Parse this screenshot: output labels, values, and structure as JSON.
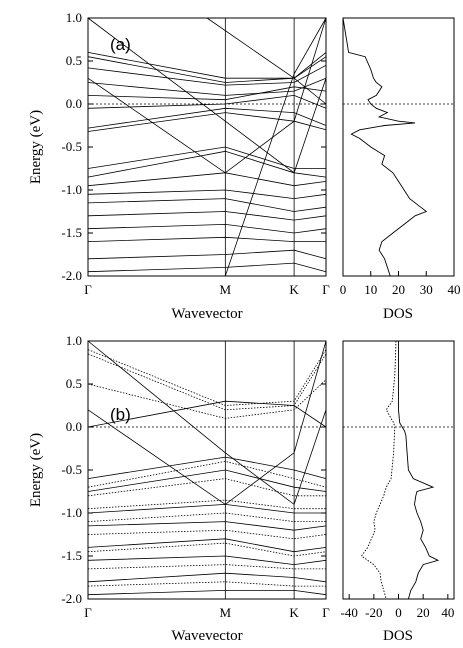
{
  "figure": {
    "panel_a_label": "(a)",
    "panel_b_label": "(b)",
    "ylabel": "Energy (eV)",
    "band_xlabel": "Wavevector",
    "dos_xlabel": "DOS",
    "kpoint_labels": [
      "Γ",
      "M",
      "K",
      "Γ"
    ]
  },
  "chart_data": [
    {
      "type": "line",
      "panel": "(a)",
      "plot": "band structure",
      "xlabel": "Wavevector",
      "ylabel": "Energy (eV)",
      "ylim": [
        -2.0,
        1.0
      ],
      "yticks": [
        1.0,
        0.5,
        0.0,
        -0.5,
        -1.0,
        -1.5,
        -2.0
      ],
      "ytick_labels": [
        "1.0",
        "0.5",
        "0.0",
        "-0.5",
        "-1.0",
        "-1.5",
        "-2.0"
      ],
      "kpath": [
        "Γ",
        "M",
        "K",
        "Γ"
      ],
      "kpath_positions": [
        0,
        0.577,
        0.866,
        1.0
      ],
      "fermi_level": 0.0,
      "bands": [
        {
          "x": [
            0,
            0.577,
            0.866,
            1.0
          ],
          "y": [
            0.6,
            0.3,
            0.3,
            0.6
          ]
        },
        {
          "x": [
            0,
            0.577,
            0.866,
            1.0
          ],
          "y": [
            0.55,
            0.25,
            0.3,
            0.55
          ]
        },
        {
          "x": [
            0,
            0.577,
            0.866,
            1.0
          ],
          "y": [
            0.42,
            0.22,
            0.25,
            0.45
          ]
        },
        {
          "x": [
            0,
            0.577,
            0.866,
            1.0
          ],
          "y": [
            0.25,
            0.1,
            0.15,
            0.3
          ]
        },
        {
          "x": [
            0,
            0.577,
            0.866,
            1.0
          ],
          "y": [
            0.1,
            0.05,
            0.2,
            0.15
          ]
        },
        {
          "x": [
            0,
            0.577,
            0.866,
            1.0
          ],
          "y": [
            -0.05,
            0.0,
            0.1,
            -0.05
          ]
        },
        {
          "x": [
            0,
            0.577,
            0.866,
            1.0
          ],
          "y": [
            -0.28,
            -0.05,
            -0.1,
            -0.25
          ]
        },
        {
          "x": [
            0,
            0.577,
            0.866,
            1.0
          ],
          "y": [
            -0.32,
            -0.1,
            -0.2,
            -0.3
          ]
        },
        {
          "x": [
            0,
            0.577,
            0.866,
            1.0
          ],
          "y": [
            -0.75,
            -0.5,
            -0.75,
            -0.75
          ]
        },
        {
          "x": [
            0,
            0.577,
            0.866,
            1.0
          ],
          "y": [
            -0.85,
            -0.55,
            -0.8,
            -0.85
          ]
        },
        {
          "x": [
            0,
            0.577,
            0.866,
            1.0
          ],
          "y": [
            -0.95,
            -0.8,
            -0.95,
            -0.9
          ]
        },
        {
          "x": [
            0,
            0.577,
            0.866,
            1.0
          ],
          "y": [
            -1.05,
            -1.0,
            -1.1,
            -1.05
          ]
        },
        {
          "x": [
            0,
            0.577,
            0.866,
            1.0
          ],
          "y": [
            -1.15,
            -1.1,
            -1.25,
            -1.2
          ]
        },
        {
          "x": [
            0,
            0.577,
            0.866,
            1.0
          ],
          "y": [
            -1.3,
            -1.25,
            -1.35,
            -1.3
          ]
        },
        {
          "x": [
            0,
            0.577,
            0.866,
            1.0
          ],
          "y": [
            -1.45,
            -1.4,
            -1.5,
            -1.45
          ]
        },
        {
          "x": [
            0,
            0.577,
            0.866,
            1.0
          ],
          "y": [
            -1.6,
            -1.55,
            -1.6,
            -1.6
          ]
        },
        {
          "x": [
            0,
            0.577,
            0.866,
            1.0
          ],
          "y": [
            -1.8,
            -1.75,
            -1.7,
            -1.8
          ]
        },
        {
          "x": [
            0,
            0.577,
            0.866,
            1.0
          ],
          "y": [
            -1.95,
            -1.9,
            -1.85,
            -1.95
          ]
        },
        {
          "x": [
            0,
            0.577,
            0.866,
            1.0
          ],
          "y": [
            1.0,
            -0.2,
            -0.8,
            0.3
          ]
        },
        {
          "x": [
            0,
            0.577,
            0.866,
            1.0
          ],
          "y": [
            0.3,
            -0.8,
            -0.2,
            1.0
          ]
        },
        {
          "x": [
            0.5,
            0.866,
            1.0
          ],
          "y": [
            1.0,
            0.3,
            0.0
          ]
        },
        {
          "x": [
            0.577,
            0.866,
            1.0
          ],
          "y": [
            -2.0,
            0.35,
            1.0
          ]
        }
      ]
    },
    {
      "type": "line",
      "panel": "(a)",
      "plot": "density of states",
      "xlabel": "DOS",
      "ylabel": "",
      "xlim": [
        0,
        40
      ],
      "xticks": [
        0,
        10,
        20,
        30,
        40
      ],
      "ylim": [
        -2.0,
        1.0
      ],
      "series": [
        {
          "energy": [
            1.0,
            0.8,
            0.6,
            0.55,
            0.4,
            0.3,
            0.25,
            0.2,
            0.15,
            0.1,
            0.05,
            0.0,
            -0.05,
            -0.1,
            -0.15,
            -0.2,
            -0.22,
            -0.25,
            -0.3,
            -0.35,
            -0.4,
            -0.5,
            -0.6,
            -0.7,
            -0.8,
            -0.9,
            -1.0,
            -1.1,
            -1.2,
            -1.25,
            -1.3,
            -1.4,
            -1.5,
            -1.6,
            -1.7,
            -1.8,
            -1.9,
            -2.0
          ],
          "dos": [
            0,
            1,
            2,
            8,
            10,
            11,
            12,
            14,
            13,
            12,
            9,
            10,
            12,
            16,
            13,
            20,
            26,
            15,
            6,
            3,
            6,
            10,
            15,
            14,
            18,
            20,
            22,
            24,
            28,
            30,
            26,
            22,
            18,
            14,
            13,
            15,
            16,
            17
          ]
        }
      ]
    },
    {
      "type": "line",
      "panel": "(b)",
      "plot": "band structure",
      "xlabel": "Wavevector",
      "ylabel": "Energy (eV)",
      "ylim": [
        -2.0,
        1.0
      ],
      "yticks": [
        1.0,
        0.5,
        0.0,
        -0.5,
        -1.0,
        -1.5,
        -2.0
      ],
      "ytick_labels": [
        "1.0",
        "0.5",
        "0.0",
        "-0.5",
        "-1.0",
        "-1.5",
        "-2.0"
      ],
      "kpath": [
        "Γ",
        "M",
        "K",
        "Γ"
      ],
      "kpath_positions": [
        0,
        0.577,
        0.866,
        1.0
      ],
      "fermi_level": 0.0,
      "series_styles": [
        "solid",
        "dotted"
      ],
      "bands": [
        {
          "style": "solid",
          "x": [
            0,
            0.577,
            0.866,
            1.0
          ],
          "y": [
            0.0,
            0.3,
            0.25,
            0.0
          ]
        },
        {
          "style": "solid",
          "x": [
            0,
            0.577,
            0.866,
            1.0
          ],
          "y": [
            -0.6,
            -0.35,
            -0.5,
            -0.6
          ]
        },
        {
          "style": "solid",
          "x": [
            0,
            0.577,
            0.866,
            1.0
          ],
          "y": [
            -0.75,
            -0.5,
            -0.7,
            -0.75
          ]
        },
        {
          "style": "solid",
          "x": [
            0,
            0.577,
            0.866,
            1.0
          ],
          "y": [
            -1.0,
            -0.9,
            -1.0,
            -1.0
          ]
        },
        {
          "style": "solid",
          "x": [
            0,
            0.577,
            0.866,
            1.0
          ],
          "y": [
            -1.15,
            -1.1,
            -1.2,
            -1.15
          ]
        },
        {
          "style": "solid",
          "x": [
            0,
            0.577,
            0.866,
            1.0
          ],
          "y": [
            -1.4,
            -1.3,
            -1.45,
            -1.4
          ]
        },
        {
          "style": "solid",
          "x": [
            0,
            0.577,
            0.866,
            1.0
          ],
          "y": [
            -1.55,
            -1.5,
            -1.6,
            -1.55
          ]
        },
        {
          "style": "solid",
          "x": [
            0,
            0.577,
            0.866,
            1.0
          ],
          "y": [
            -1.8,
            -1.7,
            -1.75,
            -1.8
          ]
        },
        {
          "style": "solid",
          "x": [
            0,
            0.577,
            0.866,
            1.0
          ],
          "y": [
            -1.95,
            -1.9,
            -1.9,
            -1.95
          ]
        },
        {
          "style": "solid",
          "x": [
            0,
            0.577,
            0.866,
            1.0
          ],
          "y": [
            1.0,
            -0.3,
            -0.9,
            0.2
          ]
        },
        {
          "style": "solid",
          "x": [
            0,
            0.577,
            0.866,
            1.0
          ],
          "y": [
            0.2,
            -0.9,
            -0.3,
            1.0
          ]
        },
        {
          "style": "dotted",
          "x": [
            0,
            0.577,
            0.866,
            1.0
          ],
          "y": [
            0.9,
            0.25,
            0.3,
            0.9
          ]
        },
        {
          "style": "dotted",
          "x": [
            0,
            0.577,
            0.866,
            1.0
          ],
          "y": [
            0.85,
            0.2,
            0.25,
            0.85
          ]
        },
        {
          "style": "dotted",
          "x": [
            0,
            0.577,
            0.866,
            1.0
          ],
          "y": [
            0.5,
            0.1,
            0.2,
            0.55
          ]
        },
        {
          "style": "dotted",
          "x": [
            0,
            0.577,
            0.866,
            1.0
          ],
          "y": [
            -0.7,
            -0.4,
            -0.6,
            -0.7
          ]
        },
        {
          "style": "dotted",
          "x": [
            0,
            0.577,
            0.866,
            1.0
          ],
          "y": [
            -0.8,
            -0.6,
            -0.8,
            -0.8
          ]
        },
        {
          "style": "dotted",
          "x": [
            0,
            0.577,
            0.866,
            1.0
          ],
          "y": [
            -0.95,
            -0.85,
            -0.95,
            -0.95
          ]
        },
        {
          "style": "dotted",
          "x": [
            0,
            0.577,
            0.866,
            1.0
          ],
          "y": [
            -1.1,
            -1.0,
            -1.1,
            -1.1
          ]
        },
        {
          "style": "dotted",
          "x": [
            0,
            0.577,
            0.866,
            1.0
          ],
          "y": [
            -1.25,
            -1.2,
            -1.3,
            -1.25
          ]
        },
        {
          "style": "dotted",
          "x": [
            0,
            0.577,
            0.866,
            1.0
          ],
          "y": [
            -1.45,
            -1.35,
            -1.5,
            -1.45
          ]
        },
        {
          "style": "dotted",
          "x": [
            0,
            0.577,
            0.866,
            1.0
          ],
          "y": [
            -1.65,
            -1.6,
            -1.65,
            -1.65
          ]
        },
        {
          "style": "dotted",
          "x": [
            0,
            0.577,
            0.866,
            1.0
          ],
          "y": [
            -1.85,
            -1.8,
            -1.85,
            -1.85
          ]
        }
      ]
    },
    {
      "type": "line",
      "panel": "(b)",
      "plot": "density of states",
      "xlabel": "DOS",
      "ylabel": "",
      "xlim": [
        -45,
        45
      ],
      "xticks": [
        -40,
        -20,
        0,
        20,
        40
      ],
      "ylim": [
        -2.0,
        1.0
      ],
      "series": [
        {
          "style": "solid",
          "energy": [
            1.0,
            0.6,
            0.2,
            0.05,
            0.0,
            -0.05,
            -0.1,
            -0.3,
            -0.5,
            -0.6,
            -0.7,
            -0.75,
            -0.8,
            -0.9,
            -1.0,
            -1.1,
            -1.2,
            -1.3,
            -1.4,
            -1.5,
            -1.55,
            -1.6,
            -1.7,
            -1.8,
            -1.9,
            -2.0
          ],
          "dos": [
            0,
            0,
            0,
            1,
            3,
            5,
            6,
            7,
            8,
            12,
            28,
            15,
            14,
            13,
            15,
            18,
            20,
            18,
            22,
            25,
            32,
            20,
            16,
            14,
            10,
            8
          ]
        },
        {
          "style": "dotted",
          "energy": [
            1.0,
            0.6,
            0.3,
            0.2,
            0.1,
            0.05,
            0.0,
            -0.3,
            -0.6,
            -0.7,
            -0.8,
            -0.9,
            -1.0,
            -1.1,
            -1.2,
            -1.3,
            -1.4,
            -1.5,
            -1.6,
            -1.7,
            -1.8,
            -1.9,
            -2.0
          ],
          "dos": [
            -2,
            -3,
            -5,
            -10,
            -6,
            -4,
            -3,
            -4,
            -6,
            -10,
            -12,
            -15,
            -18,
            -20,
            -19,
            -22,
            -25,
            -30,
            -20,
            -15,
            -14,
            -12,
            -10
          ]
        }
      ]
    }
  ]
}
